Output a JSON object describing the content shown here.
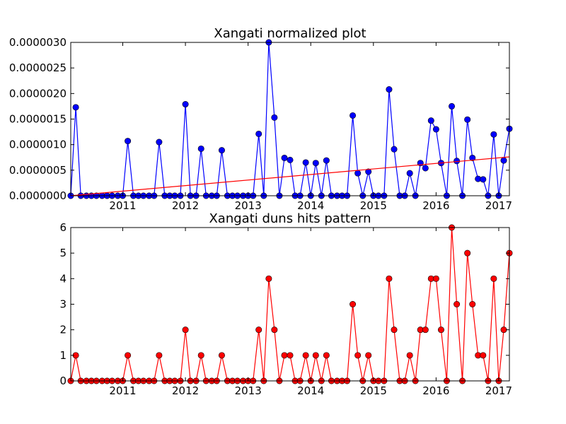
{
  "colors": {
    "top_series": "#0000ff",
    "top_trend": "#ff0000",
    "bottom_series": "#ff0000",
    "axes": "#000000"
  },
  "chart_data": [
    {
      "type": "line",
      "title": "Xangati normalized plot",
      "xlabel": "",
      "ylabel": "",
      "xlim": [
        2010.17,
        2017.17
      ],
      "ylim": [
        0,
        3e-06
      ],
      "xticks": [
        "2011",
        "2012",
        "2013",
        "2014",
        "2015",
        "2016",
        "2017"
      ],
      "yticks": [
        "0.0000000",
        "0.0000005",
        "0.0000010",
        "0.0000015",
        "0.0000020",
        "0.0000025",
        "0.0000030"
      ],
      "grid": false,
      "marker": "circle",
      "series": [
        {
          "x": [
            2010.17,
            2010.25,
            2010.33,
            2010.42,
            2010.5,
            2010.58,
            2010.67,
            2010.75,
            2010.83,
            2010.92,
            2011.0,
            2011.08,
            2011.17,
            2011.25,
            2011.33,
            2011.42,
            2011.5,
            2011.58,
            2011.67,
            2011.75,
            2011.83,
            2011.92,
            2012.0,
            2012.08,
            2012.17,
            2012.25,
            2012.33,
            2012.42,
            2012.5,
            2012.58,
            2012.67,
            2012.75,
            2012.83,
            2012.92,
            2013.0,
            2013.08,
            2013.17,
            2013.25,
            2013.33,
            2013.42,
            2013.5,
            2013.58,
            2013.67,
            2013.75,
            2013.83,
            2013.92,
            2014.0,
            2014.08,
            2014.17,
            2014.25,
            2014.33,
            2014.42,
            2014.5,
            2014.58,
            2014.67,
            2014.75,
            2014.83,
            2014.92,
            2015.0,
            2015.08,
            2015.17,
            2015.25,
            2015.33,
            2015.42,
            2015.5,
            2015.58,
            2015.67,
            2015.75,
            2015.83,
            2015.92,
            2016.0,
            2016.08,
            2016.17,
            2016.25,
            2016.33,
            2016.42,
            2016.5,
            2016.58,
            2016.67,
            2016.75,
            2016.83,
            2016.92,
            2017.0,
            2017.08,
            2017.17
          ],
          "values": [
            0,
            1.73e-06,
            0,
            0,
            0,
            0,
            0,
            0,
            0,
            0,
            0,
            1.07e-06,
            0,
            0,
            0,
            0,
            0,
            1.05e-06,
            0,
            0,
            0,
            0,
            1.79e-06,
            0,
            0,
            9.2e-07,
            0,
            0,
            0,
            8.9e-07,
            0,
            0,
            0,
            0,
            0,
            0,
            1.21e-06,
            0,
            3e-06,
            1.53e-06,
            0,
            7.4e-07,
            7e-07,
            0,
            0,
            6.5e-07,
            0,
            6.4e-07,
            0,
            6.9e-07,
            0,
            0,
            0,
            0,
            1.57e-06,
            4.4e-07,
            0,
            4.7e-07,
            0,
            0,
            0,
            2.08e-06,
            9.1e-07,
            0,
            0,
            4.4e-07,
            0,
            6.4e-07,
            5.4e-07,
            1.47e-06,
            1.3e-06,
            6.4e-07,
            0,
            1.75e-06,
            6.8e-07,
            0,
            1.49e-06,
            7.4e-07,
            3.3e-07,
            3.2e-07,
            0,
            1.2e-06,
            0,
            6.9e-07,
            1.31e-06
          ]
        },
        {
          "type": "trend",
          "x": [
            2010.17,
            2017.17
          ],
          "values": [
            0,
            7.6e-07
          ]
        }
      ]
    },
    {
      "type": "line",
      "title": "Xangati duns hits pattern",
      "xlabel": "",
      "ylabel": "",
      "xlim": [
        2010.17,
        2017.17
      ],
      "ylim": [
        0,
        6
      ],
      "xticks": [
        "2011",
        "2012",
        "2013",
        "2014",
        "2015",
        "2016",
        "2017"
      ],
      "yticks": [
        "0",
        "1",
        "2",
        "3",
        "4",
        "5",
        "6"
      ],
      "grid": false,
      "marker": "circle",
      "series": [
        {
          "x": [
            2010.17,
            2010.25,
            2010.33,
            2010.42,
            2010.5,
            2010.58,
            2010.67,
            2010.75,
            2010.83,
            2010.92,
            2011.0,
            2011.08,
            2011.17,
            2011.25,
            2011.33,
            2011.42,
            2011.5,
            2011.58,
            2011.67,
            2011.75,
            2011.83,
            2011.92,
            2012.0,
            2012.08,
            2012.17,
            2012.25,
            2012.33,
            2012.42,
            2012.5,
            2012.58,
            2012.67,
            2012.75,
            2012.83,
            2012.92,
            2013.0,
            2013.08,
            2013.17,
            2013.25,
            2013.33,
            2013.42,
            2013.5,
            2013.58,
            2013.67,
            2013.75,
            2013.83,
            2013.92,
            2014.0,
            2014.08,
            2014.17,
            2014.25,
            2014.33,
            2014.42,
            2014.5,
            2014.58,
            2014.67,
            2014.75,
            2014.83,
            2014.92,
            2015.0,
            2015.08,
            2015.17,
            2015.25,
            2015.33,
            2015.42,
            2015.5,
            2015.58,
            2015.67,
            2015.75,
            2015.83,
            2015.92,
            2016.0,
            2016.08,
            2016.17,
            2016.25,
            2016.33,
            2016.42,
            2016.5,
            2016.58,
            2016.67,
            2016.75,
            2016.83,
            2016.92,
            2017.0,
            2017.08,
            2017.17
          ],
          "values": [
            0,
            1,
            0,
            0,
            0,
            0,
            0,
            0,
            0,
            0,
            0,
            1,
            0,
            0,
            0,
            0,
            0,
            1,
            0,
            0,
            0,
            0,
            2,
            0,
            0,
            1,
            0,
            0,
            0,
            1,
            0,
            0,
            0,
            0,
            0,
            0,
            2,
            0,
            4,
            2,
            0,
            1,
            1,
            0,
            0,
            1,
            0,
            1,
            0,
            1,
            0,
            0,
            0,
            0,
            3,
            1,
            0,
            1,
            0,
            0,
            0,
            4,
            2,
            0,
            0,
            1,
            0,
            2,
            2,
            4,
            4,
            2,
            0,
            6,
            3,
            0,
            5,
            3,
            1,
            1,
            0,
            4,
            0,
            2,
            5
          ]
        }
      ]
    }
  ]
}
